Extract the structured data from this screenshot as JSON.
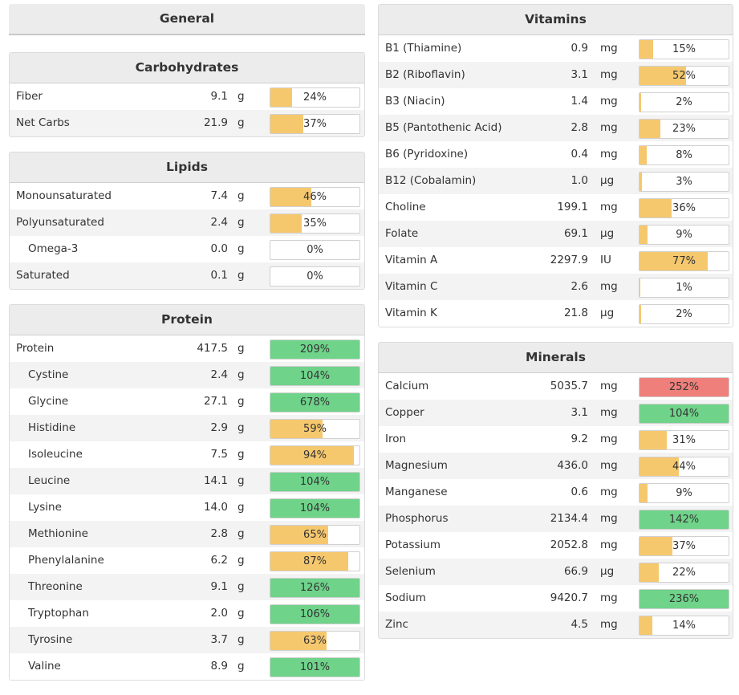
{
  "general": {
    "title": "General"
  },
  "carbohydrates": {
    "title": "Carbohydrates",
    "rows": [
      {
        "label": "Fiber",
        "value": "9.1",
        "unit": "g",
        "pct": "24%",
        "fill": 24,
        "color": "#f6c86e"
      },
      {
        "label": "Net Carbs",
        "value": "21.9",
        "unit": "g",
        "pct": "37%",
        "fill": 37,
        "color": "#f6c86e"
      }
    ]
  },
  "lipids": {
    "title": "Lipids",
    "rows": [
      {
        "label": "Monounsaturated",
        "value": "7.4",
        "unit": "g",
        "pct": "46%",
        "fill": 46,
        "color": "#f6c86e"
      },
      {
        "label": "Polyunsaturated",
        "value": "2.4",
        "unit": "g",
        "pct": "35%",
        "fill": 35,
        "color": "#f6c86e"
      },
      {
        "label": "Omega-3",
        "value": "0.0",
        "unit": "g",
        "pct": "0%",
        "fill": 0,
        "color": "#f6c86e"
      },
      {
        "label": "Saturated",
        "value": "0.1",
        "unit": "g",
        "pct": "0%",
        "fill": 0,
        "color": "#f6c86e"
      }
    ]
  },
  "protein": {
    "title": "Protein",
    "rows": [
      {
        "label": "Protein",
        "value": "417.5",
        "unit": "g",
        "pct": "209%",
        "fill": 100,
        "color": "#6fd38a"
      },
      {
        "label": "Cystine",
        "value": "2.4",
        "unit": "g",
        "pct": "104%",
        "fill": 100,
        "color": "#6fd38a"
      },
      {
        "label": "Glycine",
        "value": "27.1",
        "unit": "g",
        "pct": "678%",
        "fill": 100,
        "color": "#6fd38a"
      },
      {
        "label": "Histidine",
        "value": "2.9",
        "unit": "g",
        "pct": "59%",
        "fill": 59,
        "color": "#f6c86e"
      },
      {
        "label": "Isoleucine",
        "value": "7.5",
        "unit": "g",
        "pct": "94%",
        "fill": 94,
        "color": "#f6c86e"
      },
      {
        "label": "Leucine",
        "value": "14.1",
        "unit": "g",
        "pct": "104%",
        "fill": 100,
        "color": "#6fd38a"
      },
      {
        "label": "Lysine",
        "value": "14.0",
        "unit": "g",
        "pct": "104%",
        "fill": 100,
        "color": "#6fd38a"
      },
      {
        "label": "Methionine",
        "value": "2.8",
        "unit": "g",
        "pct": "65%",
        "fill": 65,
        "color": "#f6c86e"
      },
      {
        "label": "Phenylalanine",
        "value": "6.2",
        "unit": "g",
        "pct": "87%",
        "fill": 87,
        "color": "#f6c86e"
      },
      {
        "label": "Threonine",
        "value": "9.1",
        "unit": "g",
        "pct": "126%",
        "fill": 100,
        "color": "#6fd38a"
      },
      {
        "label": "Tryptophan",
        "value": "2.0",
        "unit": "g",
        "pct": "106%",
        "fill": 100,
        "color": "#6fd38a"
      },
      {
        "label": "Tyrosine",
        "value": "3.7",
        "unit": "g",
        "pct": "63%",
        "fill": 63,
        "color": "#f6c86e"
      },
      {
        "label": "Valine",
        "value": "8.9",
        "unit": "g",
        "pct": "101%",
        "fill": 100,
        "color": "#6fd38a"
      }
    ]
  },
  "vitamins": {
    "title": "Vitamins",
    "rows": [
      {
        "label": "B1 (Thiamine)",
        "value": "0.9",
        "unit": "mg",
        "pct": "15%",
        "fill": 15,
        "color": "#f6c86e"
      },
      {
        "label": "B2 (Riboflavin)",
        "value": "3.1",
        "unit": "mg",
        "pct": "52%",
        "fill": 52,
        "color": "#f6c86e"
      },
      {
        "label": "B3 (Niacin)",
        "value": "1.4",
        "unit": "mg",
        "pct": "2%",
        "fill": 2,
        "color": "#f6c86e"
      },
      {
        "label": "B5 (Pantothenic Acid)",
        "value": "2.8",
        "unit": "mg",
        "pct": "23%",
        "fill": 23,
        "color": "#f6c86e"
      },
      {
        "label": "B6 (Pyridoxine)",
        "value": "0.4",
        "unit": "mg",
        "pct": "8%",
        "fill": 8,
        "color": "#f6c86e"
      },
      {
        "label": "B12 (Cobalamin)",
        "value": "1.0",
        "unit": "µg",
        "pct": "3%",
        "fill": 3,
        "color": "#f6c86e"
      },
      {
        "label": "Choline",
        "value": "199.1",
        "unit": "mg",
        "pct": "36%",
        "fill": 36,
        "color": "#f6c86e"
      },
      {
        "label": "Folate",
        "value": "69.1",
        "unit": "µg",
        "pct": "9%",
        "fill": 9,
        "color": "#f6c86e"
      },
      {
        "label": "Vitamin A",
        "value": "2297.9",
        "unit": "IU",
        "pct": "77%",
        "fill": 77,
        "color": "#f6c86e"
      },
      {
        "label": "Vitamin C",
        "value": "2.6",
        "unit": "mg",
        "pct": "1%",
        "fill": 1,
        "color": "#f6c86e"
      },
      {
        "label": "Vitamin K",
        "value": "21.8",
        "unit": "µg",
        "pct": "2%",
        "fill": 2,
        "color": "#f6c86e"
      }
    ]
  },
  "minerals": {
    "title": "Minerals",
    "rows": [
      {
        "label": "Calcium",
        "value": "5035.7",
        "unit": "mg",
        "pct": "252%",
        "fill": 100,
        "color": "#ef7f7a"
      },
      {
        "label": "Copper",
        "value": "3.1",
        "unit": "mg",
        "pct": "104%",
        "fill": 100,
        "color": "#6fd38a"
      },
      {
        "label": "Iron",
        "value": "9.2",
        "unit": "mg",
        "pct": "31%",
        "fill": 31,
        "color": "#f6c86e"
      },
      {
        "label": "Magnesium",
        "value": "436.0",
        "unit": "mg",
        "pct": "44%",
        "fill": 44,
        "color": "#f6c86e"
      },
      {
        "label": "Manganese",
        "value": "0.6",
        "unit": "mg",
        "pct": "9%",
        "fill": 9,
        "color": "#f6c86e"
      },
      {
        "label": "Phosphorus",
        "value": "2134.4",
        "unit": "mg",
        "pct": "142%",
        "fill": 100,
        "color": "#6fd38a"
      },
      {
        "label": "Potassium",
        "value": "2052.8",
        "unit": "mg",
        "pct": "37%",
        "fill": 37,
        "color": "#f6c86e"
      },
      {
        "label": "Selenium",
        "value": "66.9",
        "unit": "µg",
        "pct": "22%",
        "fill": 22,
        "color": "#f6c86e"
      },
      {
        "label": "Sodium",
        "value": "9420.7",
        "unit": "mg",
        "pct": "236%",
        "fill": 100,
        "color": "#6fd38a"
      },
      {
        "label": "Zinc",
        "value": "4.5",
        "unit": "mg",
        "pct": "14%",
        "fill": 14,
        "color": "#f6c86e"
      }
    ]
  }
}
